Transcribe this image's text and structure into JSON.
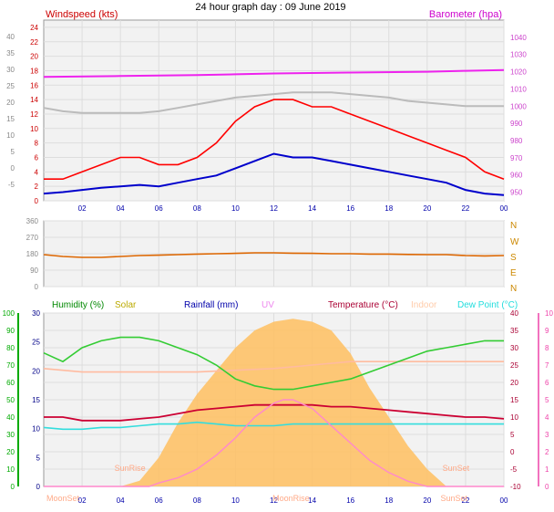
{
  "header": {
    "title": "24 hour graph day : 09 June 2019"
  },
  "chart_data": [
    {
      "id": "wind",
      "type": "line",
      "title": "24 hour graph day : 09 June 2019",
      "left_title": "Windspeed (kts)",
      "right_title": "Barometer (hpa)",
      "colors": {
        "left_title": "#cc0000",
        "right_title": "#cc00cc",
        "gust": "#ff0000",
        "avg": "#0000cc",
        "baro": "#ee22ee",
        "gray": "#bbbbbb",
        "axis_left": "#888888",
        "axis_right": "#cc44cc"
      },
      "x_ticks": [
        "02",
        "04",
        "06",
        "08",
        "10",
        "12",
        "14",
        "16",
        "18",
        "20",
        "22",
        "00"
      ],
      "y_left_ticks": [
        0,
        2,
        4,
        6,
        8,
        10,
        12,
        14,
        16,
        18,
        20,
        22,
        24
      ],
      "y_left_ylim": [
        0,
        25
      ],
      "y_outer_ticks": [
        -5,
        0,
        5,
        10,
        15,
        20,
        25,
        30,
        35,
        40
      ],
      "y_outer_ylim": [
        -10,
        45
      ],
      "y_right_ticks": [
        950,
        960,
        970,
        980,
        990,
        1000,
        1010,
        1020,
        1030,
        1040
      ],
      "y_right_ylim": [
        945,
        1050
      ],
      "series": [
        {
          "key": "gust",
          "x": [
            0,
            1,
            2,
            3,
            4,
            5,
            6,
            7,
            8,
            9,
            10,
            11,
            12,
            13,
            14,
            15,
            16,
            17,
            18,
            19,
            20,
            21,
            22,
            23,
            24
          ],
          "values": [
            3,
            3,
            4,
            5,
            6,
            6,
            5,
            5,
            6,
            8,
            11,
            13,
            14,
            14,
            13,
            13,
            12,
            11,
            10,
            9,
            8,
            7,
            6,
            4,
            3
          ]
        },
        {
          "key": "avg",
          "x": [
            0,
            1,
            2,
            3,
            4,
            5,
            6,
            7,
            8,
            9,
            10,
            11,
            12,
            13,
            14,
            15,
            16,
            17,
            18,
            19,
            20,
            21,
            22,
            23,
            24
          ],
          "values": [
            1.0,
            1.2,
            1.5,
            1.8,
            2.0,
            2.2,
            2.0,
            2.5,
            3.0,
            3.5,
            4.5,
            5.5,
            6.5,
            6.0,
            6.0,
            5.5,
            5.0,
            4.5,
            4.0,
            3.5,
            3.0,
            2.5,
            1.5,
            1.0,
            0.8
          ]
        },
        {
          "key": "baro",
          "x": [
            0,
            4,
            8,
            10,
            12,
            16,
            20,
            22,
            24
          ],
          "values": [
            1017,
            1017.5,
            1018,
            1018.5,
            1019,
            1019.5,
            1020,
            1020.5,
            1021
          ]
        },
        {
          "key": "gray",
          "x": [
            0,
            1,
            2,
            3,
            4,
            5,
            6,
            7,
            8,
            9,
            10,
            11,
            12,
            13,
            14,
            15,
            16,
            17,
            18,
            19,
            20,
            21,
            22,
            23,
            24
          ],
          "values": [
            999,
            997,
            996,
            996,
            996,
            996,
            997,
            999,
            1001,
            1003,
            1005,
            1006,
            1007,
            1008,
            1008,
            1008,
            1007,
            1006,
            1005,
            1003,
            1002,
            1001,
            1000,
            1000,
            1000
          ]
        }
      ]
    },
    {
      "id": "direction",
      "type": "line",
      "colors": {
        "line": "#dd6600",
        "axis": "#888888",
        "labels": "#cc8800"
      },
      "y_ticks": [
        0,
        90,
        180,
        270,
        360
      ],
      "compass": [
        "N",
        "W",
        "S",
        "E",
        "N"
      ],
      "ylim": [
        0,
        360
      ],
      "series": [
        {
          "key": "dir",
          "x": [
            0,
            1,
            2,
            3,
            4,
            5,
            6,
            7,
            8,
            9,
            10,
            11,
            12,
            13,
            14,
            15,
            16,
            17,
            18,
            19,
            20,
            21,
            22,
            23,
            24
          ],
          "values": [
            175,
            165,
            160,
            160,
            165,
            170,
            172,
            175,
            178,
            180,
            182,
            185,
            185,
            183,
            182,
            180,
            180,
            178,
            178,
            176,
            175,
            175,
            170,
            168,
            170
          ]
        }
      ]
    },
    {
      "id": "climate",
      "type": "area",
      "legend": [
        {
          "key": "humidity",
          "label": "Humidity (%)",
          "color": "#008800"
        },
        {
          "key": "solar",
          "label": "Solar",
          "color": "#bbaa00"
        },
        {
          "key": "rainfall",
          "label": "Rainfall (mm)",
          "color": "#0000aa"
        },
        {
          "key": "uv",
          "label": "UV",
          "color": "#ee88ee"
        },
        {
          "key": "temperature",
          "label": "Temperature (°C)",
          "color": "#aa0033"
        },
        {
          "key": "indoor",
          "label": "Indoor",
          "color": "#ffccaa"
        },
        {
          "key": "dewpoint",
          "label": "Dew Point (°C)",
          "color": "#22dddd"
        }
      ],
      "colors": {
        "solar_fill": "#ffc060",
        "humidity_line": "#33cc33",
        "temp_line": "#cc0033",
        "indoor_line": "#ffbba0",
        "dew_line": "#33dddd",
        "uv_line": "#ff88cc",
        "annot": "#ffaa88",
        "axis_left": "#00aa00",
        "axis_mid": "#000088",
        "axis_right": "#aa0033",
        "axis_uv": "#ee44aa"
      },
      "x_ticks": [
        "02",
        "04",
        "06",
        "08",
        "10",
        "12",
        "14",
        "16",
        "18",
        "20",
        "22",
        "00"
      ],
      "humidity_ticks": [
        0,
        10,
        20,
        30,
        40,
        50,
        60,
        70,
        80,
        90,
        100
      ],
      "humidity_ylim": [
        0,
        100
      ],
      "rain_ticks": [
        0,
        5,
        10,
        15,
        20,
        25,
        30
      ],
      "rain_ylim": [
        0,
        30
      ],
      "temp_ticks": [
        -10,
        -5,
        0,
        5,
        10,
        15,
        20,
        25,
        30,
        35,
        40
      ],
      "temp_ylim": [
        -10,
        40
      ],
      "uv_ticks": [
        0,
        1,
        2,
        3,
        4,
        5,
        6,
        7,
        8,
        9,
        10
      ],
      "uv_ylim": [
        0,
        10
      ],
      "annotations": [
        {
          "key": "sunrise",
          "label": "SunRise",
          "hour": 4.5,
          "pos": "low"
        },
        {
          "key": "sunset",
          "label": "SunSet",
          "hour": 21.5,
          "pos": "low"
        },
        {
          "key": "moonset",
          "label": "MoonSet",
          "hour": 1.0,
          "pos": "bottom"
        },
        {
          "key": "moonrise",
          "label": "MoonRise",
          "hour": 12.9,
          "pos": "bottom"
        },
        {
          "key": "sunset2",
          "label": "SunSet",
          "hour": 21.4,
          "pos": "bottom"
        }
      ],
      "series": [
        {
          "key": "humidity",
          "x": [
            0,
            1,
            2,
            3,
            4,
            5,
            6,
            7,
            8,
            9,
            10,
            11,
            12,
            13,
            14,
            15,
            16,
            17,
            18,
            19,
            20,
            21,
            22,
            23,
            24
          ],
          "values": [
            77,
            72,
            80,
            84,
            86,
            86,
            84,
            80,
            76,
            70,
            62,
            58,
            56,
            56,
            58,
            60,
            62,
            66,
            70,
            74,
            78,
            80,
            82,
            84,
            84
          ]
        },
        {
          "key": "temperature",
          "x": [
            0,
            1,
            2,
            3,
            4,
            5,
            6,
            7,
            8,
            9,
            10,
            11,
            12,
            13,
            14,
            15,
            16,
            17,
            18,
            19,
            20,
            21,
            22,
            23,
            24
          ],
          "values": [
            10,
            10,
            9,
            9,
            9,
            9.5,
            10,
            11,
            12,
            12.5,
            13,
            13.5,
            13.5,
            13.5,
            13.5,
            13,
            13,
            12.5,
            12,
            11.5,
            11,
            10.5,
            10,
            10,
            9.5
          ]
        },
        {
          "key": "indoor",
          "x": [
            0,
            2,
            4,
            6,
            8,
            10,
            12,
            14,
            16,
            18,
            20,
            22,
            24
          ],
          "values": [
            24,
            23,
            23,
            23,
            23,
            23.5,
            24,
            25,
            26,
            26,
            26,
            26,
            26
          ]
        },
        {
          "key": "dewpoint",
          "x": [
            0,
            1,
            2,
            3,
            4,
            5,
            6,
            7,
            8,
            9,
            10,
            11,
            12,
            13,
            14,
            15,
            16,
            17,
            18,
            19,
            20,
            21,
            22,
            23,
            24
          ],
          "values": [
            7,
            6.5,
            6.5,
            7,
            7,
            7.5,
            8,
            8,
            8.5,
            8,
            7.5,
            7.5,
            7.5,
            8,
            8,
            8,
            8,
            8,
            8,
            8,
            8,
            8,
            8,
            8,
            8
          ]
        },
        {
          "key": "solar",
          "x": [
            0,
            4,
            5,
            6,
            7,
            8,
            9,
            10,
            11,
            12,
            13,
            14,
            15,
            16,
            17,
            18,
            19,
            20,
            21,
            22,
            24
          ],
          "values": [
            0,
            0,
            1,
            5,
            11,
            16,
            20,
            24,
            27,
            28.5,
            29,
            28.5,
            27,
            23,
            17,
            12,
            7,
            3,
            0,
            0,
            0
          ]
        },
        {
          "key": "uv",
          "x": [
            0,
            5.5,
            6,
            7,
            8,
            9,
            10,
            11,
            12,
            12.5,
            13,
            14,
            15,
            16,
            17,
            18,
            19,
            20,
            24
          ],
          "values": [
            0,
            0,
            0.2,
            0.5,
            1,
            1.8,
            2.8,
            4,
            4.8,
            5,
            5,
            4.5,
            3.5,
            2.5,
            1.5,
            0.8,
            0.3,
            0,
            0
          ]
        }
      ]
    }
  ]
}
